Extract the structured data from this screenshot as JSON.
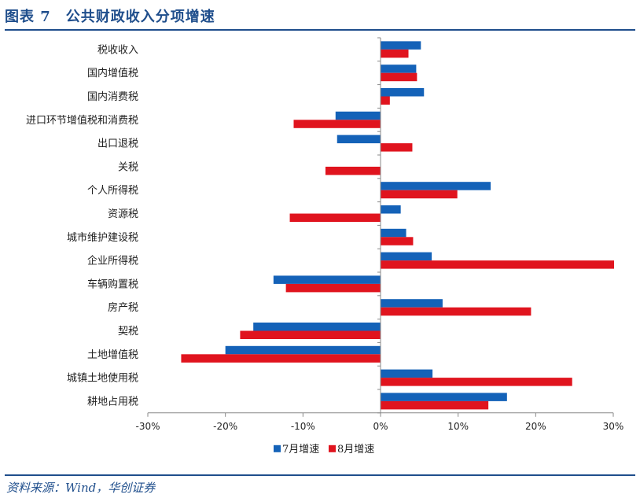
{
  "header": {
    "title": "图表 7　公共财政收入分项增速"
  },
  "footer": {
    "source": "资料来源：Wind，华创证券"
  },
  "colors": {
    "accent": "#1f4e8c",
    "series_jul": "#1462b8",
    "series_aug": "#e0141e"
  },
  "chart_data": {
    "type": "bar",
    "orientation": "horizontal",
    "categories": [
      "税收收入",
      "国内增值税",
      "国内消费税",
      "进口环节增值税和消费税",
      "出口退税",
      "关税",
      "个人所得税",
      "资源税",
      "城市维护建设税",
      "企业所得税",
      "车辆购置税",
      "房产税",
      "契税",
      "土地增值税",
      "城镇土地使用税",
      "耕地占用税"
    ],
    "series": [
      {
        "name": "7月增速",
        "color": "#1462b8",
        "values": [
          5.2,
          4.6,
          5.6,
          -5.8,
          -5.6,
          0.0,
          14.2,
          2.6,
          3.3,
          6.6,
          -13.8,
          8.0,
          -16.4,
          -20.0,
          6.7,
          16.3
        ]
      },
      {
        "name": "8月增速",
        "color": "#e0141e",
        "values": [
          3.6,
          4.7,
          1.2,
          -11.2,
          4.1,
          -7.1,
          9.9,
          -11.7,
          4.2,
          30.1,
          -12.2,
          19.4,
          -18.1,
          -25.7,
          24.7,
          13.9
        ]
      }
    ],
    "xlim": [
      -30,
      30
    ],
    "xticks": [
      "-30%",
      "-20%",
      "-10%",
      "0%",
      "10%",
      "20%",
      "30%"
    ],
    "legend_position": "bottom",
    "grid": false
  }
}
